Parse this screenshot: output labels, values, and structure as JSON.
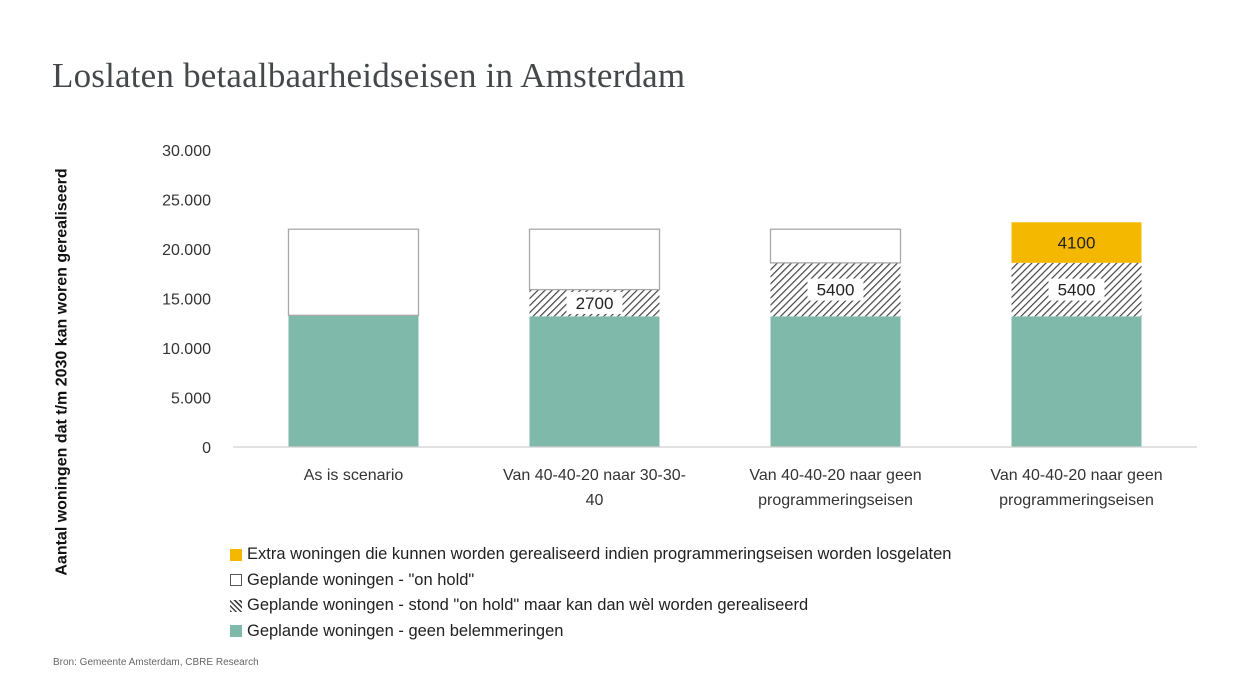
{
  "chart_data": {
    "type": "bar",
    "stacked": true,
    "title": "Loslaten betaalbaarheidseisen in Amsterdam",
    "ylabel": "Aantal woningen dat t/m 2030 kan woren gerealiseerd",
    "ylim": [
      0,
      30000
    ],
    "yticks": [
      0,
      5000,
      10000,
      15000,
      20000,
      25000,
      30000
    ],
    "ytick_labels": [
      "0",
      "5.000",
      "10.000",
      "15.000",
      "20.000",
      "25.000",
      "30.000"
    ],
    "grid": false,
    "legend_position": "bottom",
    "categories": [
      [
        "As is scenario"
      ],
      [
        "Van 40-40-20 naar 30-30-",
        "40"
      ],
      [
        "Van 40-40-20 naar geen",
        "programmeringseisen"
      ],
      [
        "Van 40-40-20 naar geen",
        "programmeringseisen"
      ]
    ],
    "series": [
      {
        "name": "Geplande woningen - geen belemmeringen",
        "values": [
          13300,
          13200,
          13200,
          13200
        ],
        "labels": [
          "",
          "",
          "",
          ""
        ],
        "color": "#7fb9aa",
        "pattern": "solid"
      },
      {
        "name": "Geplande woningen - stond \"on hold\" maar kan dan wèl worden gerealiseerd",
        "values": [
          0,
          2700,
          5400,
          5400
        ],
        "labels": [
          "",
          "2700",
          "5400",
          "5400"
        ],
        "color": "#555555",
        "pattern": "hatch"
      },
      {
        "name": "Geplande woningen - \"on hold\"",
        "values": [
          8700,
          6100,
          3400,
          0
        ],
        "labels": [
          "",
          "",
          "",
          ""
        ],
        "color": "#ffffff",
        "pattern": "outline"
      },
      {
        "name": "Extra woningen die kunnen worden gerealiseerd indien programmeringseisen worden losgelaten",
        "values": [
          0,
          0,
          0,
          4100
        ],
        "labels": [
          "",
          "",
          "",
          "4100"
        ],
        "color": "#f5b800",
        "pattern": "solid"
      }
    ],
    "legend_order": [
      3,
      2,
      1,
      0
    ]
  },
  "source": "Bron: Gemeente Amsterdam, CBRE Research"
}
